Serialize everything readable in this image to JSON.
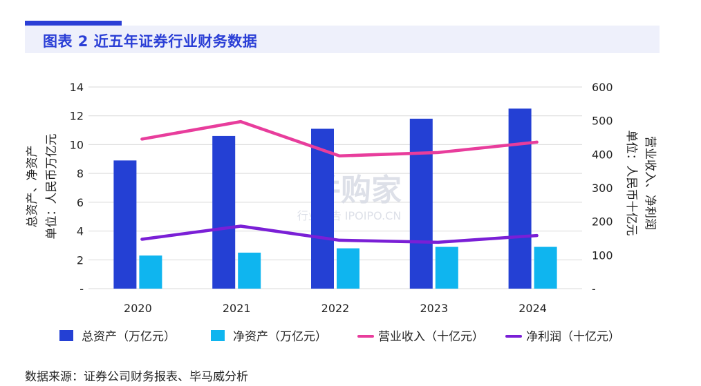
{
  "title": "图表 2 近五年证券行业财务数据",
  "source": "数据来源：证券公司财务报表、毕马威分析",
  "watermark": {
    "main": "并购家",
    "sub": "行业报告 IPOIPO.CN"
  },
  "colors": {
    "accent": "#2b3fd6",
    "total_assets": "#2440d4",
    "net_assets": "#0fb5ef",
    "revenue": "#e83d9c",
    "net_profit": "#7a1fd6",
    "grid": "#d9d9d9"
  },
  "chart_data": {
    "type": "bar",
    "categories": [
      "2020",
      "2021",
      "2022",
      "2023",
      "2024"
    ],
    "left_axis": {
      "lines": [
        "总资产、净资产",
        "单位：人民币万亿元"
      ],
      "ylim": [
        0,
        14
      ],
      "ticks": [
        "-",
        "2",
        "4",
        "6",
        "8",
        "10",
        "12",
        "14"
      ]
    },
    "right_axis": {
      "lines": [
        "营业收入、净利润",
        "单位：人民币十亿元"
      ],
      "ylim": [
        0,
        600
      ],
      "ticks": [
        "-",
        "100",
        "200",
        "300",
        "400",
        "500",
        "600"
      ]
    },
    "bar_series": [
      {
        "name": "总资产（万亿元）",
        "values": [
          8.9,
          10.6,
          11.1,
          11.8,
          12.5
        ],
        "axis": "left"
      },
      {
        "name": "净资产（万亿元）",
        "values": [
          2.3,
          2.5,
          2.8,
          2.9,
          2.9
        ],
        "axis": "left"
      }
    ],
    "line_series": [
      {
        "name": "营业收入（十亿元）",
        "values": [
          445,
          497,
          395,
          405,
          436
        ],
        "axis": "right"
      },
      {
        "name": "净利润（十亿元）",
        "values": [
          147,
          186,
          144,
          138,
          158
        ],
        "axis": "right"
      }
    ],
    "grid": true,
    "legend": "bottom"
  }
}
